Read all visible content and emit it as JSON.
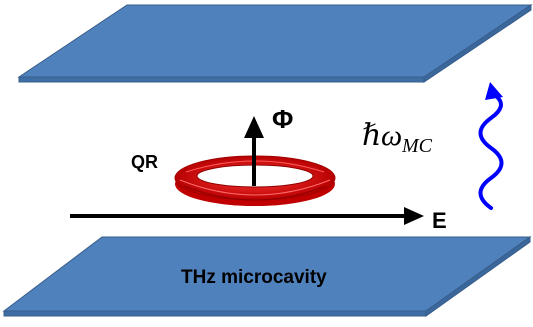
{
  "labels": {
    "flux": "Φ",
    "ring": "QR",
    "field": "E",
    "photon_hbar": "ℏ",
    "photon_omega": "ω",
    "photon_sub": "MC",
    "cavity": "THz microcavity"
  },
  "colors": {
    "plate_fill": "#4f81bd",
    "plate_edge": "#385d8a",
    "ring": "#e00000",
    "arrow": "#000000",
    "wave": "#0000ff"
  }
}
